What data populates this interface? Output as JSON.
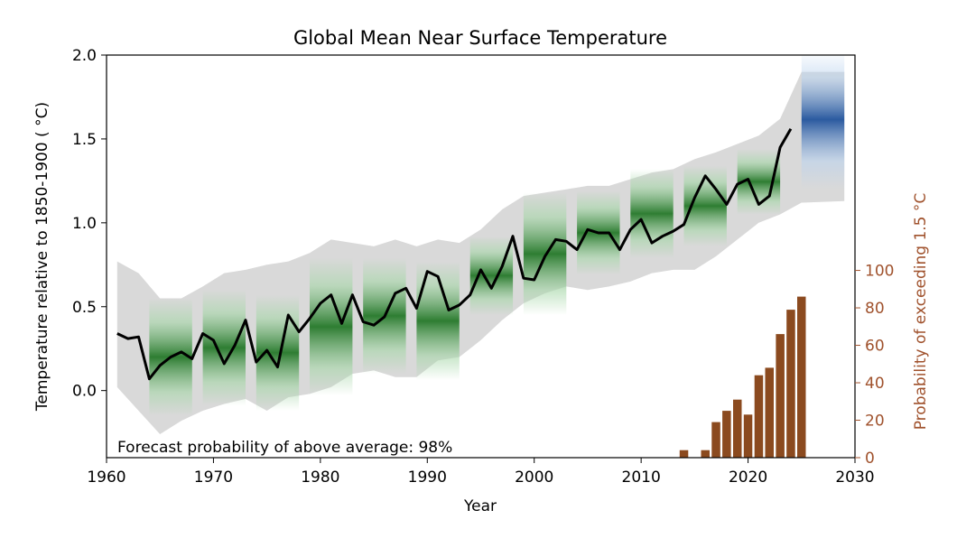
{
  "chart_data": {
    "type": "line",
    "title": "Global Mean Near Surface Temperature",
    "xlabel": "Year",
    "ylabel": "Temperature relative to 1850-1900 ($^\\circ$C)",
    "ylabel_display": "Temperature relative to 1850-1900 ( °C)",
    "y2label": "Probability of exceeding 1.5 °C",
    "xlim": [
      1960,
      2030
    ],
    "ylim": [
      -0.4,
      2.0
    ],
    "y2lim": [
      0,
      215
    ],
    "xticks": [
      "1960",
      "1970",
      "1980",
      "1990",
      "2000",
      "2010",
      "2020",
      "2030"
    ],
    "yticks": [
      "0.0",
      "0.5",
      "1.0",
      "1.5",
      "2.0"
    ],
    "y2ticks": [
      "0",
      "20",
      "40",
      "60",
      "80",
      "100"
    ],
    "annotation": "Forecast probability of above average: 98%",
    "colors": {
      "observed_line": "#000000",
      "hindcast_range": "#d9d9d9",
      "hindcast_forecast": "#2e7d32",
      "forecast": "#2b5aa0",
      "probability_bars": "#8b4a1f",
      "y2_axis": "#a0522d"
    },
    "series": [
      {
        "kind": "line",
        "x": [
          1961,
          1962,
          1963,
          1964,
          1965,
          1966,
          1967,
          1968,
          1969,
          1970,
          1971,
          1972,
          1973,
          1974,
          1975,
          1976,
          1977,
          1978,
          1979,
          1980,
          1981,
          1982,
          1983,
          1984,
          1985,
          1986,
          1987,
          1988,
          1989,
          1990,
          1991,
          1992,
          1993,
          1994,
          1995,
          1996,
          1997,
          1998,
          1999,
          2000,
          2001,
          2002,
          2003,
          2004,
          2005,
          2006,
          2007,
          2008,
          2009,
          2010,
          2011,
          2012,
          2013,
          2014,
          2015,
          2016,
          2017,
          2018,
          2019,
          2020,
          2021,
          2022,
          2023,
          2024
        ],
        "values": [
          0.34,
          0.31,
          0.32,
          0.07,
          0.15,
          0.2,
          0.23,
          0.19,
          0.34,
          0.3,
          0.16,
          0.27,
          0.42,
          0.17,
          0.24,
          0.14,
          0.45,
          0.35,
          0.43,
          0.52,
          0.57,
          0.4,
          0.57,
          0.41,
          0.39,
          0.44,
          0.58,
          0.61,
          0.49,
          0.71,
          0.68,
          0.48,
          0.51,
          0.57,
          0.72,
          0.61,
          0.74,
          0.92,
          0.67,
          0.66,
          0.8,
          0.9,
          0.89,
          0.84,
          0.96,
          0.94,
          0.94,
          0.84,
          0.96,
          1.02,
          0.88,
          0.92,
          0.95,
          0.99,
          1.15,
          1.28,
          1.2,
          1.11,
          1.23,
          1.26,
          1.11,
          1.16,
          1.45,
          1.56
        ]
      },
      {
        "kind": "band",
        "x": [
          1961,
          1963,
          1965,
          1967,
          1969,
          1971,
          1973,
          1975,
          1977,
          1979,
          1981,
          1983,
          1985,
          1987,
          1989,
          1991,
          1993,
          1995,
          1997,
          1999,
          2001,
          2003,
          2005,
          2007,
          2009,
          2011,
          2013,
          2015,
          2017,
          2019,
          2021,
          2023,
          2025,
          2029
        ],
        "low": [
          0.02,
          -0.12,
          -0.26,
          -0.18,
          -0.12,
          -0.08,
          -0.05,
          -0.12,
          -0.04,
          -0.02,
          0.02,
          0.1,
          0.12,
          0.08,
          0.08,
          0.18,
          0.2,
          0.3,
          0.42,
          0.52,
          0.58,
          0.62,
          0.6,
          0.62,
          0.65,
          0.7,
          0.72,
          0.72,
          0.8,
          0.9,
          1.0,
          1.05,
          1.12,
          1.13
        ],
        "high": [
          0.77,
          0.7,
          0.55,
          0.55,
          0.62,
          0.7,
          0.72,
          0.75,
          0.77,
          0.82,
          0.9,
          0.88,
          0.86,
          0.9,
          0.86,
          0.9,
          0.88,
          0.96,
          1.08,
          1.16,
          1.18,
          1.2,
          1.22,
          1.22,
          1.26,
          1.3,
          1.32,
          1.38,
          1.42,
          1.47,
          1.52,
          1.62,
          1.9,
          1.9
        ]
      },
      {
        "kind": "hindcast_blocks",
        "start": [
          1964,
          1969,
          1974,
          1979,
          1984,
          1989,
          1994,
          1999,
          2004,
          2009,
          2014,
          2019,
          2025
        ],
        "low": [
          -0.15,
          -0.09,
          -0.12,
          -0.03,
          0.1,
          0.06,
          0.45,
          0.45,
          0.69,
          0.79,
          0.86,
          1.05,
          1.2
        ],
        "high": [
          0.55,
          0.6,
          0.57,
          0.79,
          0.79,
          0.77,
          0.92,
          1.18,
          1.19,
          1.32,
          1.34,
          1.44,
          2.03
        ]
      }
    ],
    "bars": {
      "x": [
        2014,
        2016,
        2017,
        2018,
        2019,
        2020,
        2021,
        2022,
        2023,
        2024,
        2025
      ],
      "values": [
        4,
        4,
        19,
        25,
        31,
        23,
        44,
        48,
        66,
        79,
        86
      ]
    }
  }
}
